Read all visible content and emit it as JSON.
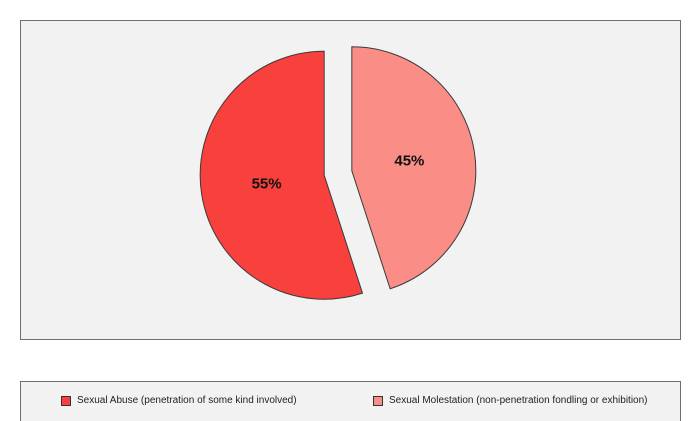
{
  "chart_data": {
    "type": "pie",
    "title": "",
    "slices": [
      {
        "name": "Sexual Abuse (penetration of some kind involved)",
        "value": 55,
        "label": "55%",
        "color": "#f8403c"
      },
      {
        "name": "Sexual Molestation (non-penetration fondling or exhibition)",
        "value": 45,
        "label": "45%",
        "color": "#fb8d87"
      }
    ],
    "exploded": true,
    "start_angle": "12 o'clock",
    "direction": "counter-clockwise for first slice",
    "legend_position": "bottom"
  },
  "legend": {
    "items": [
      {
        "label": "Sexual Abuse (penetration of some kind involved)",
        "color": "#f8403c"
      },
      {
        "label": "Sexual Molestation (non-penetration fondling or exhibition)",
        "color": "#fb8d87"
      }
    ]
  }
}
